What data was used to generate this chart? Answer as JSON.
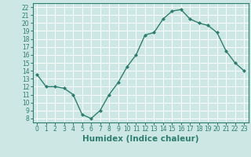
{
  "x": [
    0,
    1,
    2,
    3,
    4,
    5,
    6,
    7,
    8,
    9,
    10,
    11,
    12,
    13,
    14,
    15,
    16,
    17,
    18,
    19,
    20,
    21,
    22,
    23
  ],
  "y": [
    13.5,
    12.0,
    12.0,
    11.8,
    11.0,
    8.5,
    8.0,
    9.0,
    11.0,
    12.5,
    14.5,
    16.0,
    18.5,
    18.8,
    20.5,
    21.5,
    21.7,
    20.5,
    20.0,
    19.7,
    18.8,
    16.5,
    15.0,
    14.0
  ],
  "line_color": "#2e7d6e",
  "marker": "D",
  "marker_size": 2.0,
  "xlabel": "Humidex (Indice chaleur)",
  "xlim": [
    -0.5,
    23.5
  ],
  "ylim": [
    7.5,
    22.5
  ],
  "yticks": [
    8,
    9,
    10,
    11,
    12,
    13,
    14,
    15,
    16,
    17,
    18,
    19,
    20,
    21,
    22
  ],
  "xticks": [
    0,
    1,
    2,
    3,
    4,
    5,
    6,
    7,
    8,
    9,
    10,
    11,
    12,
    13,
    14,
    15,
    16,
    17,
    18,
    19,
    20,
    21,
    22,
    23
  ],
  "bg_color": "#cde8e4",
  "grid_color": "#ffffff",
  "tick_label_fontsize": 5.5,
  "xlabel_fontsize": 7.5,
  "line_width": 1.0,
  "spine_color": "#2e7d6e"
}
